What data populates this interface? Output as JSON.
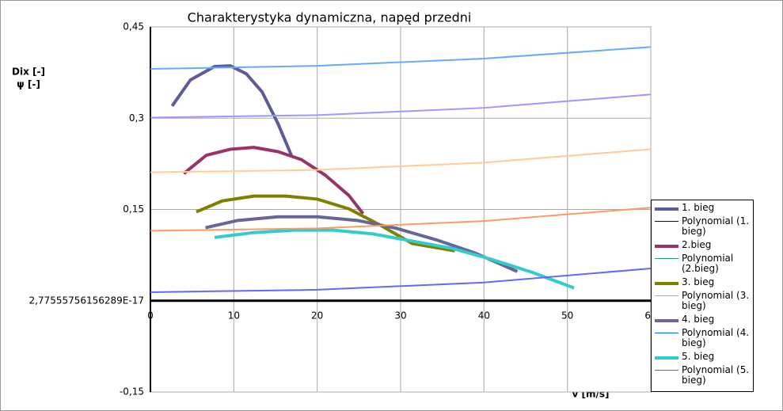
{
  "chart_data": {
    "type": "line",
    "title": "Charakterystyka dynamiczna, napęd przedni",
    "ylabel": [
      "Dix [-]",
      "ψ [-]"
    ],
    "xlabel": "v [m/s]",
    "xlim": [
      0,
      60
    ],
    "xticks": [
      0,
      10,
      20,
      30,
      40,
      50,
      {
        "value": 60,
        "label": "60"
      }
    ],
    "ylim": [
      -0.15,
      0.45
    ],
    "yticks": [
      {
        "value": -0.15,
        "label": "-0,15"
      },
      {
        "value": 2.77555756156289e-17,
        "label": "2,77555756156289E-17"
      },
      {
        "value": 0.15,
        "label": "0,15"
      },
      {
        "value": 0.3,
        "label": "0,3"
      },
      {
        "value": 0.45,
        "label": "0,45"
      }
    ],
    "grid": true,
    "legend": "right",
    "series": [
      {
        "name": "1. bieg",
        "color": "#5c5c99",
        "width": 4,
        "x": [
          2.6,
          4.8,
          7.7,
          9.6,
          11.5,
          13.4,
          15.3,
          16.9
        ],
        "values": [
          0.32,
          0.363,
          0.385,
          0.386,
          0.373,
          0.343,
          0.291,
          0.239
        ]
      },
      {
        "name": "Polynomial (1. bieg)",
        "color": "#000080",
        "width": 1
      },
      {
        "name": "2.bieg",
        "color": "#993366",
        "width": 4,
        "x": [
          4,
          6.7,
          9.6,
          12.4,
          15.3,
          18.1,
          21,
          23.8,
          25.5
        ],
        "values": [
          0.209,
          0.239,
          0.249,
          0.252,
          0.245,
          0.232,
          0.206,
          0.173,
          0.143
        ]
      },
      {
        "name": "Polynomial (2.bieg)",
        "color": "#339966",
        "width": 1
      },
      {
        "name": "3. bieg",
        "color": "#808000",
        "width": 4,
        "x": [
          5.5,
          8.6,
          12.4,
          16.2,
          20,
          23.8,
          27.6,
          31.4,
          36.5
        ],
        "values": [
          0.146,
          0.164,
          0.172,
          0.172,
          0.167,
          0.151,
          0.124,
          0.094,
          0.082
        ]
      },
      {
        "name": "Polynomial (3. bieg)",
        "color": "#ff9933",
        "width": 1
      },
      {
        "name": "4. bieg",
        "color": "#666699",
        "width": 4,
        "x": [
          6.6,
          10.5,
          15.3,
          20,
          24.8,
          29.5,
          34.3,
          39,
          44
        ],
        "values": [
          0.12,
          0.132,
          0.138,
          0.138,
          0.132,
          0.119,
          0.1,
          0.078,
          0.048
        ]
      },
      {
        "name": "Polynomial (4. bieg)",
        "color": "#0066cc",
        "width": 1
      },
      {
        "name": "5. bieg",
        "color": "#33cccc",
        "width": 4,
        "x": [
          7.7,
          12.4,
          17.2,
          21.9,
          26.6,
          31.4,
          36.2,
          40.9,
          45.7,
          50.8
        ],
        "values": [
          0.104,
          0.112,
          0.116,
          0.116,
          0.11,
          0.098,
          0.086,
          0.068,
          0.047,
          0.021
        ]
      },
      {
        "name": "Polynomial (5. bieg)",
        "color": "#6666cc",
        "width": 1
      },
      {
        "color": "#66aaff",
        "width": 2,
        "x": [
          0,
          20,
          40,
          60
        ],
        "values": [
          0.381,
          0.386,
          0.398,
          0.417
        ]
      },
      {
        "color": "#9999ff",
        "width": 2,
        "x": [
          0,
          20,
          40,
          60
        ],
        "values": [
          0.301,
          0.305,
          0.317,
          0.339
        ]
      },
      {
        "color": "#ffcc99",
        "width": 2,
        "x": [
          0,
          20,
          40,
          60
        ],
        "values": [
          0.211,
          0.215,
          0.227,
          0.249
        ]
      },
      {
        "color": "#ff9966",
        "width": 2,
        "x": [
          0,
          20,
          40,
          60
        ],
        "values": [
          0.115,
          0.119,
          0.131,
          0.153
        ]
      },
      {
        "color": "#6666ff",
        "width": 2,
        "x": [
          0,
          20,
          40,
          60
        ],
        "values": [
          0.014,
          0.018,
          0.03,
          0.053
        ]
      }
    ]
  }
}
